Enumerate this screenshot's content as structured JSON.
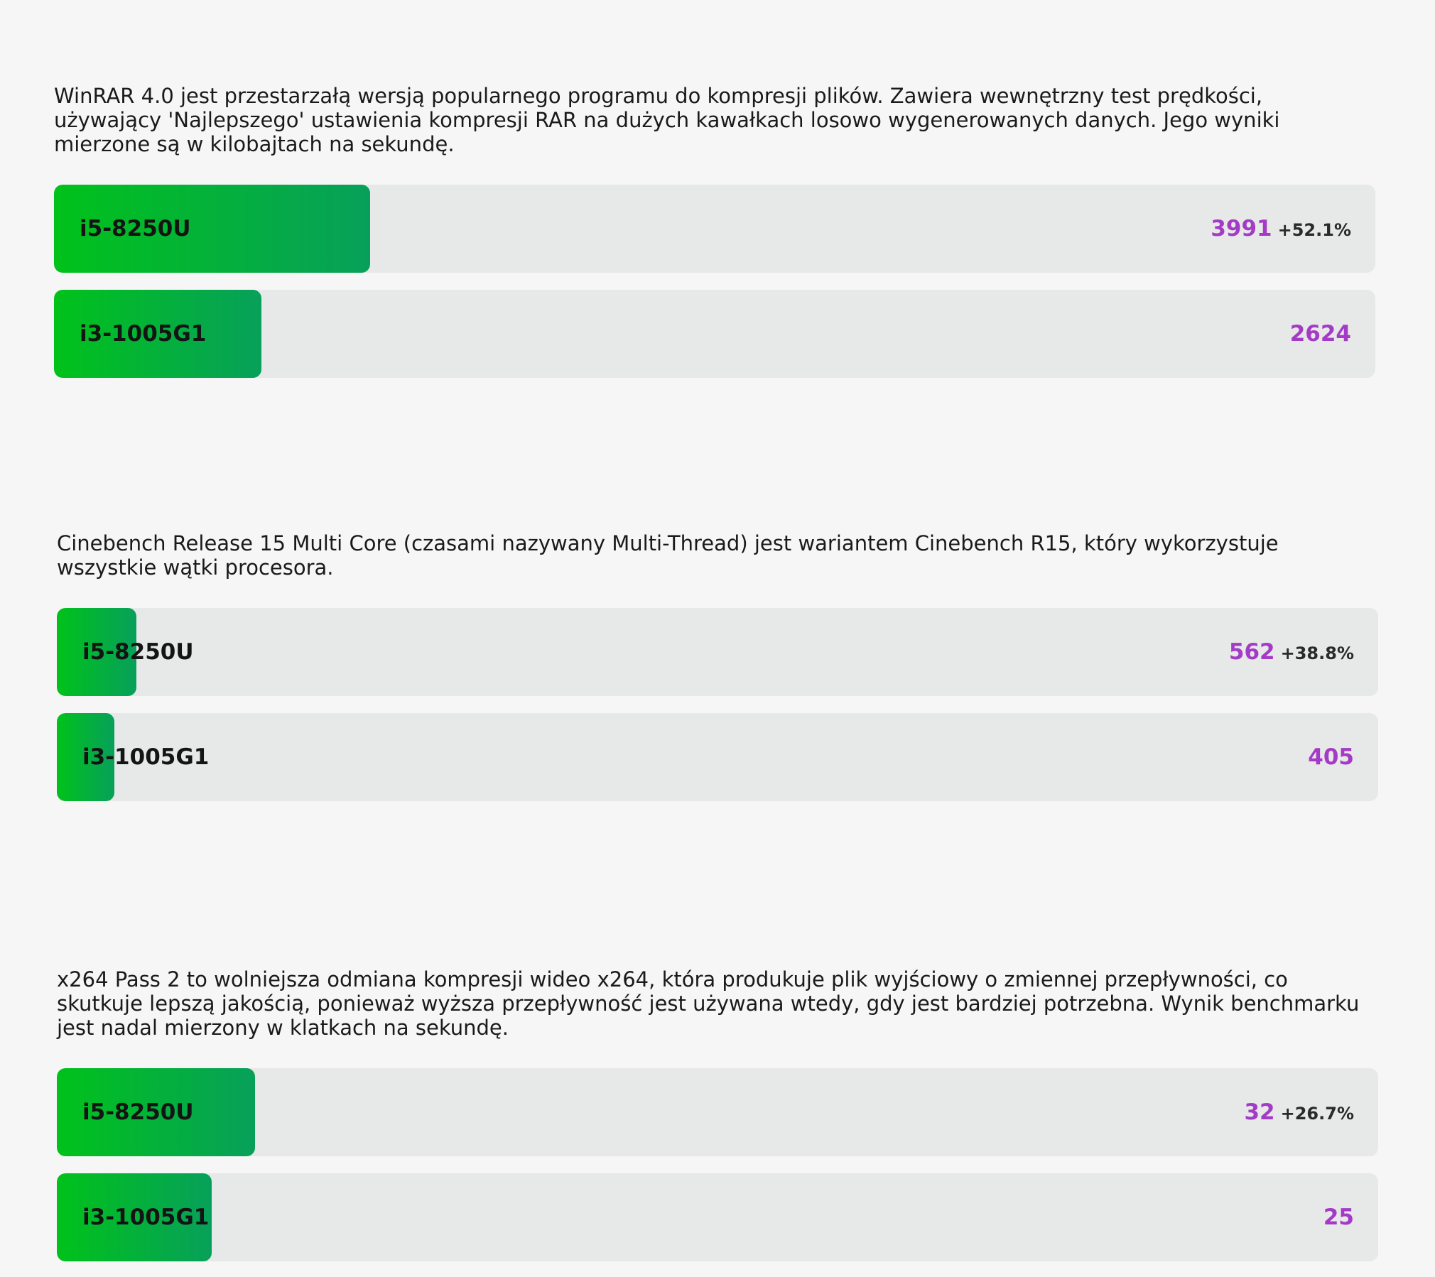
{
  "colors": {
    "background": "#f6f6f6",
    "track": "#e7e8e8",
    "fill_start": "#00c21a",
    "fill_end": "#07a05a",
    "value": "#a43bc6",
    "label": "#141414"
  },
  "chart_data": [
    {
      "type": "bar",
      "description": "WinRAR 4.0 jest przestarzałą wersją popularnego programu do kompresji plików. Zawiera wewnętrzny test prędkości, używający 'Najlepszego' ustawienia kompresji RAR na dużych kawałkach losowo wygenerowanych danych. Jego wyniki mierzone są w kilobajtach na sekundę.",
      "scale_max": 16700,
      "bars": [
        {
          "label": "i5-8250U",
          "value": 3991,
          "value_text": "3991",
          "diff": "+52.1%"
        },
        {
          "label": "i3-1005G1",
          "value": 2624,
          "value_text": "2624",
          "diff": ""
        }
      ]
    },
    {
      "type": "bar",
      "description": "Cinebench Release 15 Multi Core (czasami nazywany Multi-Thread) jest wariantem Cinebench R15, który wykorzystuje wszystkie wątki procesora.",
      "scale_max": 9350,
      "bars": [
        {
          "label": "i5-8250U",
          "value": 562,
          "value_text": "562",
          "diff": "+38.8%"
        },
        {
          "label": "i3-1005G1",
          "value": 405,
          "value_text": "405",
          "diff": ""
        }
      ]
    },
    {
      "type": "bar",
      "description": "x264 Pass 2 to wolniejsza odmiana kompresji wideo x264, która produkuje plik wyjściowy o zmiennej przepływności, co skutkuje lepszą jakością, ponieważ wyższa przepływność jest używana wtedy, gdy jest bardziej potrzebna. Wynik benchmarku jest nadal mierzony w klatkach na sekundę.",
      "scale_max": 213,
      "bars": [
        {
          "label": "i5-8250U",
          "value": 32,
          "value_text": "32",
          "diff": "+26.7%"
        },
        {
          "label": "i3-1005G1",
          "value": 25,
          "value_text": "25",
          "diff": ""
        }
      ]
    }
  ]
}
